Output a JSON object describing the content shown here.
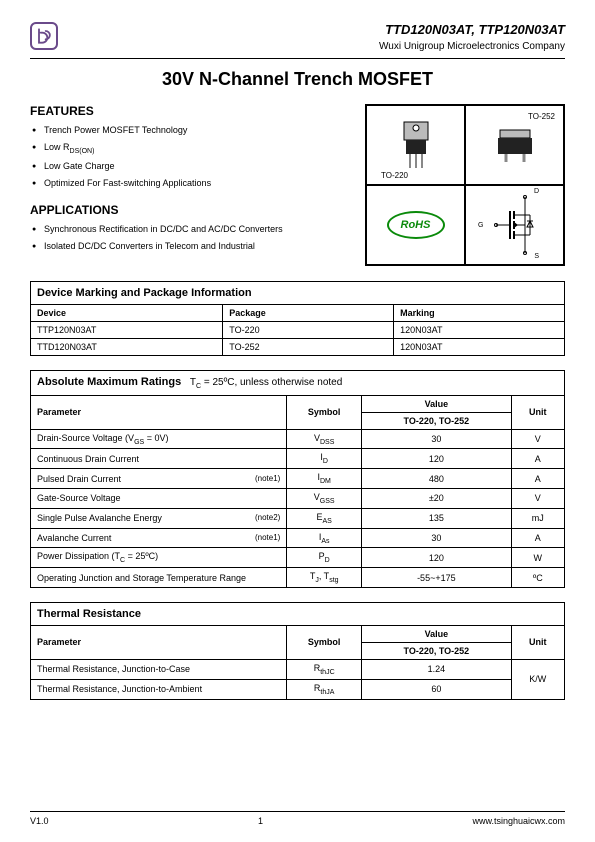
{
  "header": {
    "part_numbers": "TTD120N03AT, TTP120N03AT",
    "company": "Wuxi Unigroup Microelectronics Company",
    "logo_glyph": "ⓔ"
  },
  "title": "30V N-Channel Trench MOSFET",
  "features": {
    "heading": "FEATURES",
    "items": [
      "Trench Power MOSFET Technology",
      "Low R",
      "Low Gate Charge",
      "Optimized For Fast-switching Applications"
    ],
    "item1_sub": "DS(ON)"
  },
  "applications": {
    "heading": "APPLICATIONS",
    "items": [
      "Synchronous  Rectification in DC/DC and AC/DC Converters",
      "Isolated DC/DC Converters in Telecom and Industrial"
    ]
  },
  "packages": {
    "to220_label": "TO-220",
    "to252_label": "TO-252",
    "rohs_label": "RoHS",
    "pins": {
      "g": "G",
      "d": "D",
      "s": "S"
    }
  },
  "marking_table": {
    "title": "Device Marking and Package Information",
    "headers": [
      "Device",
      "Package",
      "Marking"
    ],
    "rows": [
      [
        "TTP120N03AT",
        "TO-220",
        "120N03AT"
      ],
      [
        "TTD120N03AT",
        "TO-252",
        "120N03AT"
      ]
    ]
  },
  "abs_max_table": {
    "title": "Absolute Maximum Ratings",
    "condition": "T",
    "condition_sub": "C",
    "condition_rest": " = 25ºC, unless otherwise noted",
    "headers": {
      "param": "Parameter",
      "symbol": "Symbol",
      "value": "Value",
      "value_sub": "TO-220, TO-252",
      "unit": "Unit"
    },
    "rows": [
      {
        "param": "Drain-Source Voltage (V",
        "param_sub": "GS",
        "param_rest": " = 0V)",
        "note": "",
        "symbol": "V",
        "symbol_sub": "DSS",
        "value": "30",
        "unit": "V"
      },
      {
        "param": "Continuous Drain Current",
        "note": "",
        "symbol": "I",
        "symbol_sub": "D",
        "value": "120",
        "unit": "A"
      },
      {
        "param": "Pulsed Drain Current",
        "note": "(note1)",
        "symbol": "I",
        "symbol_sub": "DM",
        "value": "480",
        "unit": "A"
      },
      {
        "param": "Gate-Source Voltage",
        "note": "",
        "symbol": "V",
        "symbol_sub": "GSS",
        "value": "±20",
        "unit": "V"
      },
      {
        "param": "Single Pulse Avalanche Energy",
        "note": "(note2)",
        "symbol": "E",
        "symbol_sub": "AS",
        "value": "135",
        "unit": "mJ"
      },
      {
        "param": "Avalanche Current",
        "note": "(note1)",
        "symbol": "I",
        "symbol_sub": "As",
        "value": "30",
        "unit": "A"
      },
      {
        "param": "Power Dissipation (T",
        "param_sub": "C",
        "param_rest": " = 25ºC)",
        "note": "",
        "symbol": "P",
        "symbol_sub": "D",
        "value": "120",
        "unit": "W"
      },
      {
        "param": "Operating Junction and Storage Temperature Range",
        "note": "",
        "symbol": "T",
        "symbol_sub": "J",
        "symbol2": ", T",
        "symbol2_sub": "stg",
        "value": "-55~+175",
        "unit": "ºC"
      }
    ]
  },
  "thermal_table": {
    "title": "Thermal Resistance",
    "headers": {
      "param": "Parameter",
      "symbol": "Symbol",
      "value": "Value",
      "value_sub": "TO-220, TO-252",
      "unit": "Unit"
    },
    "rows": [
      {
        "param": "Thermal Resistance, Junction-to-Case",
        "symbol": "R",
        "symbol_sub": "thJC",
        "value": "1.24"
      },
      {
        "param": "Thermal Resistance, Junction-to-Ambient",
        "symbol": "R",
        "symbol_sub": "thJA",
        "value": "60"
      }
    ],
    "unit": "K/W"
  },
  "footer": {
    "version": "V1.0",
    "page": "1",
    "url": "www.tsinghuaicwx.com"
  },
  "colors": {
    "logo": "#6a4a8a",
    "rohs": "#0a8a0a",
    "border": "#000000"
  }
}
